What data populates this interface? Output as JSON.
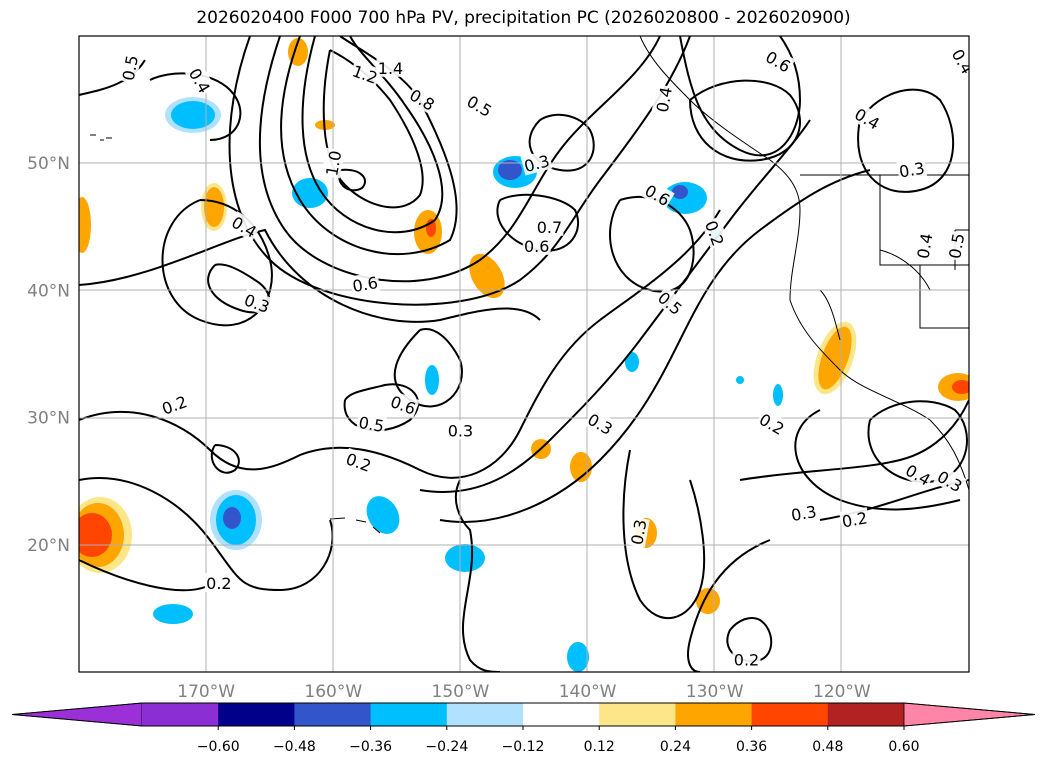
{
  "title": "2026020400 F000 700 hPa PV, precipitation PC (2026020800 - 2026020900)",
  "map": {
    "lon_range": [
      -180,
      -110
    ],
    "lat_range": [
      10,
      60
    ],
    "lat_ticks": [
      {
        "value": 20,
        "label": "20°N"
      },
      {
        "value": 30,
        "label": "30°N"
      },
      {
        "value": 40,
        "label": "40°N"
      },
      {
        "value": 50,
        "label": "50°N"
      }
    ],
    "lon_ticks": [
      {
        "value": -170,
        "label": "170°W"
      },
      {
        "value": -160,
        "label": "160°W"
      },
      {
        "value": -150,
        "label": "150°W"
      },
      {
        "value": -140,
        "label": "140°W"
      },
      {
        "value": -130,
        "label": "130°W"
      },
      {
        "value": -120,
        "label": "120°W"
      }
    ],
    "grid": true,
    "contour_labels": [
      {
        "text": "0.5",
        "lon": -176,
        "lat": 57.5,
        "rot": 80
      },
      {
        "text": "0.4",
        "lon": -170.5,
        "lat": 56.5,
        "rot": -60
      },
      {
        "text": "1.2",
        "lon": -157.5,
        "lat": 57,
        "rot": -20
      },
      {
        "text": "1.4",
        "lon": -155.5,
        "lat": 57.5,
        "rot": 0
      },
      {
        "text": "0.8",
        "lon": -153,
        "lat": 55,
        "rot": -30
      },
      {
        "text": "0.5",
        "lon": -148.5,
        "lat": 54.5,
        "rot": -30
      },
      {
        "text": "1.0",
        "lon": -160,
        "lat": 50,
        "rot": 80
      },
      {
        "text": "0.3",
        "lon": -144,
        "lat": 50,
        "rot": 15
      },
      {
        "text": "0.6",
        "lon": -125,
        "lat": 58,
        "rot": -30
      },
      {
        "text": "0.4",
        "lon": -134,
        "lat": 55,
        "rot": 80
      },
      {
        "text": "0.4",
        "lon": -118,
        "lat": 53.5,
        "rot": -30
      },
      {
        "text": "0.4",
        "lon": -110.5,
        "lat": 58,
        "rot": -60
      },
      {
        "text": "0.3",
        "lon": -114.5,
        "lat": 49.5,
        "rot": 10
      },
      {
        "text": "0.6",
        "lon": -134.5,
        "lat": 47.5,
        "rot": -30
      },
      {
        "text": "0.7",
        "lon": -143,
        "lat": 45,
        "rot": 0
      },
      {
        "text": "0.6",
        "lon": -144,
        "lat": 43.5,
        "rot": 0
      },
      {
        "text": "0.4",
        "lon": -167,
        "lat": 45,
        "rot": -30
      },
      {
        "text": "0.2",
        "lon": -130,
        "lat": 44.5,
        "rot": -70
      },
      {
        "text": "0.5",
        "lon": -133.5,
        "lat": 39,
        "rot": -40
      },
      {
        "text": "0.6",
        "lon": -157.5,
        "lat": 40.5,
        "rot": 10
      },
      {
        "text": "0.3",
        "lon": -166,
        "lat": 39,
        "rot": -20
      },
      {
        "text": "0.4",
        "lon": -113.5,
        "lat": 43.5,
        "rot": 80
      },
      {
        "text": "0.5",
        "lon": -111,
        "lat": 43.5,
        "rot": 80
      },
      {
        "text": "0.2",
        "lon": -172.5,
        "lat": 31,
        "rot": 20
      },
      {
        "text": "0.6",
        "lon": -154.5,
        "lat": 31,
        "rot": -20
      },
      {
        "text": "0.5",
        "lon": -157,
        "lat": 29.5,
        "rot": -10
      },
      {
        "text": "0.3",
        "lon": -150,
        "lat": 29,
        "rot": 0
      },
      {
        "text": "0.3",
        "lon": -139,
        "lat": 29.5,
        "rot": -30
      },
      {
        "text": "0.2",
        "lon": -125.5,
        "lat": 29.5,
        "rot": -30
      },
      {
        "text": "0.2",
        "lon": -158,
        "lat": 26.5,
        "rot": -20
      },
      {
        "text": "0.4",
        "lon": -114,
        "lat": 25.5,
        "rot": -30
      },
      {
        "text": "0.3",
        "lon": -111.5,
        "lat": 25,
        "rot": -30
      },
      {
        "text": "0.3",
        "lon": -123,
        "lat": 22.5,
        "rot": 10
      },
      {
        "text": "0.2",
        "lon": -119,
        "lat": 22,
        "rot": 10
      },
      {
        "text": "0.3",
        "lon": -136,
        "lat": 21,
        "rot": 80
      },
      {
        "text": "0.2",
        "lon": -169,
        "lat": 17,
        "rot": 0
      },
      {
        "text": "0.2",
        "lon": -127.5,
        "lat": 11,
        "rot": 0
      }
    ]
  },
  "colorbar": {
    "colors": [
      "#9b30d9",
      "#8b2fd4",
      "#00008b",
      "#3355cc",
      "#00bfff",
      "#b0e2ff",
      "#ffffff",
      "#fde68a",
      "#ffa500",
      "#ff4500",
      "#b22222",
      "#ff85a8"
    ],
    "tick_labels": [
      "−0.60",
      "−0.48",
      "−0.36",
      "−0.24",
      "−0.12",
      "0.12",
      "0.24",
      "0.36",
      "0.48",
      "0.60"
    ]
  }
}
